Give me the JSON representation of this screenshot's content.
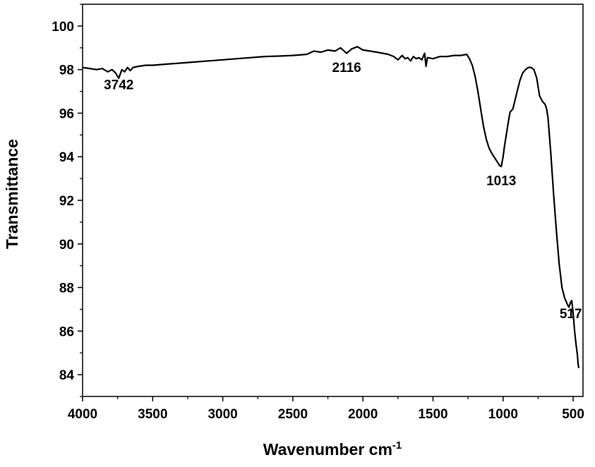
{
  "chart_data": {
    "type": "line",
    "xlabel": "Wavenumber cm",
    "xlabel_superscript": "-1",
    "ylabel": "Transmittance",
    "xlim": [
      4000,
      430
    ],
    "ylim": [
      83,
      101
    ],
    "x_reversed": true,
    "x_ticks": [
      4000,
      3500,
      3000,
      2500,
      2000,
      1500,
      1000,
      500
    ],
    "x_tick_labels": [
      "4000",
      "3500",
      "3000",
      "2500",
      "2000",
      "1500",
      "1000",
      "500"
    ],
    "y_ticks": [
      84,
      86,
      88,
      90,
      92,
      94,
      96,
      98,
      100
    ],
    "y_tick_labels": [
      "84",
      "86",
      "88",
      "90",
      "92",
      "94",
      "96",
      "98",
      "100"
    ],
    "grid": false,
    "legend": "none",
    "series": [
      {
        "color": "#000000",
        "points": [
          [
            4000,
            98.1
          ],
          [
            3950,
            98.05
          ],
          [
            3900,
            98.0
          ],
          [
            3860,
            98.05
          ],
          [
            3820,
            97.9
          ],
          [
            3790,
            98.0
          ],
          [
            3765,
            97.85
          ],
          [
            3742,
            97.6
          ],
          [
            3720,
            98.0
          ],
          [
            3700,
            97.9
          ],
          [
            3680,
            98.1
          ],
          [
            3660,
            97.95
          ],
          [
            3640,
            98.1
          ],
          [
            3600,
            98.15
          ],
          [
            3550,
            98.2
          ],
          [
            3500,
            98.2
          ],
          [
            3400,
            98.25
          ],
          [
            3300,
            98.3
          ],
          [
            3200,
            98.35
          ],
          [
            3100,
            98.4
          ],
          [
            3000,
            98.45
          ],
          [
            2900,
            98.5
          ],
          [
            2800,
            98.55
          ],
          [
            2700,
            98.6
          ],
          [
            2600,
            98.62
          ],
          [
            2500,
            98.65
          ],
          [
            2400,
            98.7
          ],
          [
            2350,
            98.85
          ],
          [
            2300,
            98.8
          ],
          [
            2250,
            98.9
          ],
          [
            2200,
            98.85
          ],
          [
            2160,
            99.0
          ],
          [
            2116,
            98.75
          ],
          [
            2080,
            98.95
          ],
          [
            2040,
            99.05
          ],
          [
            2000,
            98.9
          ],
          [
            1950,
            98.85
          ],
          [
            1900,
            98.8
          ],
          [
            1860,
            98.75
          ],
          [
            1820,
            98.7
          ],
          [
            1780,
            98.6
          ],
          [
            1750,
            98.45
          ],
          [
            1720,
            98.65
          ],
          [
            1700,
            98.5
          ],
          [
            1680,
            98.55
          ],
          [
            1660,
            98.4
          ],
          [
            1640,
            98.6
          ],
          [
            1620,
            98.5
          ],
          [
            1600,
            98.55
          ],
          [
            1580,
            98.45
          ],
          [
            1560,
            98.75
          ],
          [
            1550,
            98.15
          ],
          [
            1540,
            98.55
          ],
          [
            1500,
            98.5
          ],
          [
            1450,
            98.6
          ],
          [
            1400,
            98.6
          ],
          [
            1350,
            98.65
          ],
          [
            1300,
            98.65
          ],
          [
            1260,
            98.7
          ],
          [
            1240,
            98.5
          ],
          [
            1220,
            98.2
          ],
          [
            1200,
            97.7
          ],
          [
            1180,
            97.0
          ],
          [
            1160,
            96.2
          ],
          [
            1140,
            95.4
          ],
          [
            1120,
            94.8
          ],
          [
            1100,
            94.4
          ],
          [
            1080,
            94.15
          ],
          [
            1060,
            93.95
          ],
          [
            1040,
            93.75
          ],
          [
            1025,
            93.6
          ],
          [
            1013,
            93.55
          ],
          [
            1000,
            94.0
          ],
          [
            990,
            94.5
          ],
          [
            975,
            95.1
          ],
          [
            960,
            95.7
          ],
          [
            950,
            96.05
          ],
          [
            930,
            96.2
          ],
          [
            900,
            97.0
          ],
          [
            880,
            97.5
          ],
          [
            860,
            97.85
          ],
          [
            840,
            98.0
          ],
          [
            820,
            98.1
          ],
          [
            800,
            98.1
          ],
          [
            780,
            98.0
          ],
          [
            760,
            97.6
          ],
          [
            740,
            96.8
          ],
          [
            720,
            96.55
          ],
          [
            700,
            96.4
          ],
          [
            690,
            96.2
          ],
          [
            680,
            95.8
          ],
          [
            660,
            94.2
          ],
          [
            640,
            92.3
          ],
          [
            620,
            90.6
          ],
          [
            600,
            89.1
          ],
          [
            580,
            88.0
          ],
          [
            560,
            87.5
          ],
          [
            540,
            87.2
          ],
          [
            530,
            87.1
          ],
          [
            517,
            87.35
          ],
          [
            510,
            87.4
          ],
          [
            500,
            86.8
          ],
          [
            490,
            86.0
          ],
          [
            480,
            85.4
          ],
          [
            470,
            84.9
          ],
          [
            465,
            84.5
          ],
          [
            460,
            84.3
          ]
        ]
      }
    ],
    "annotations": [
      {
        "text": "3742",
        "x": 3742,
        "y": 97.1
      },
      {
        "text": "2116",
        "x": 2116,
        "y": 97.9
      },
      {
        "text": "1013",
        "x": 1013,
        "y": 92.7
      },
      {
        "text": "517",
        "x": 517,
        "y": 86.6
      }
    ]
  }
}
